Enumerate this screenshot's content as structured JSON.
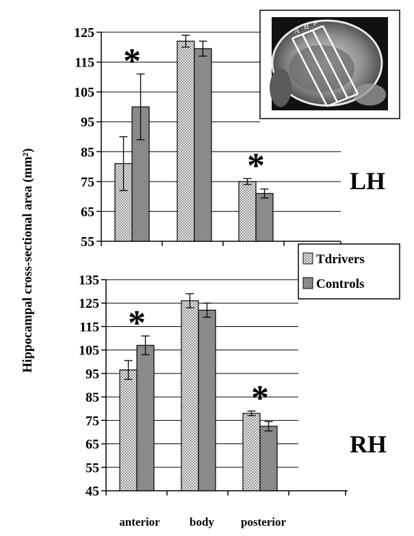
{
  "chart_data": [
    {
      "type": "bar",
      "panel_label": "LH",
      "categories": [
        "anterior",
        "body",
        "posterior"
      ],
      "series": [
        {
          "name": "Tdrivers",
          "values": [
            81,
            122,
            75
          ],
          "errors": [
            9,
            2,
            1
          ]
        },
        {
          "name": "Controls",
          "values": [
            100,
            119.5,
            71
          ],
          "errors": [
            11,
            2.5,
            1.5
          ]
        }
      ],
      "significant": [
        "*",
        "",
        "*"
      ],
      "ylim": [
        55,
        125
      ],
      "yticks": [
        "125",
        "115",
        "105",
        "95",
        "85",
        "75",
        "65",
        "55"
      ],
      "grid": true
    },
    {
      "type": "bar",
      "panel_label": "RH",
      "categories": [
        "anterior",
        "body",
        "posterior"
      ],
      "series": [
        {
          "name": "Tdrivers",
          "values": [
            96.5,
            126,
            78
          ],
          "errors": [
            4,
            3,
            1
          ]
        },
        {
          "name": "Controls",
          "values": [
            107,
            122,
            72.5
          ],
          "errors": [
            4,
            3,
            2
          ]
        }
      ],
      "significant": [
        "*",
        "",
        "*"
      ],
      "ylim": [
        45,
        135
      ],
      "yticks": [
        "135",
        "125",
        "115",
        "105",
        "95",
        "85",
        "75",
        "65",
        "55",
        "45"
      ],
      "grid": true
    }
  ],
  "ylabel": "Hippocampal cross-sectional area (mm²)",
  "xlabels": [
    "anterior",
    "body",
    "posterior"
  ],
  "legend": {
    "placement": "right-middle",
    "items": [
      "Tdrivers",
      "Controls"
    ]
  },
  "inset": {
    "labels": [
      "A",
      "B",
      "P"
    ]
  },
  "colors": {
    "tdrivers": "#e6e6e6",
    "controls": "#8a8a8a"
  }
}
